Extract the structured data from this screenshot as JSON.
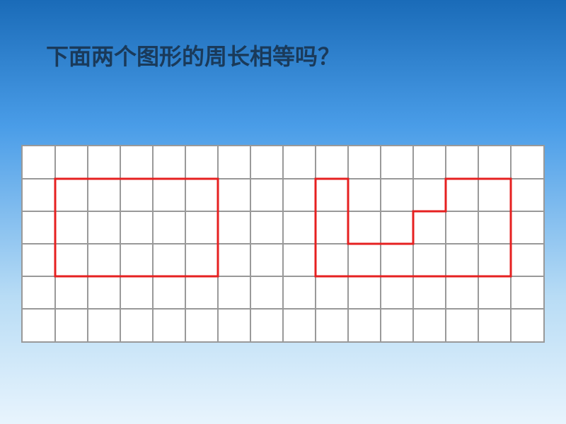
{
  "question": {
    "text": "下面两个图形的周长相等吗？",
    "fontsize": 32,
    "color": "#1a3a5a"
  },
  "background": {
    "gradient_colors": [
      "#1a6bb8",
      "#4a9de8",
      "#b8dcf5",
      "#e8f4fd"
    ]
  },
  "grid": {
    "cols": 16,
    "rows": 6,
    "cell_size": 46.25,
    "line_color": "#999999",
    "line_width": 2,
    "background": "#ffffff",
    "viewbox_width": 740,
    "viewbox_height": 277.5
  },
  "shapes": [
    {
      "type": "rectangle",
      "name": "shape-left",
      "stroke": "#e62020",
      "stroke_width": 3,
      "fill": "none",
      "points": [
        [
          1,
          1
        ],
        [
          6,
          1
        ],
        [
          6,
          4
        ],
        [
          1,
          4
        ]
      ]
    },
    {
      "type": "polygon",
      "name": "shape-right",
      "stroke": "#e62020",
      "stroke_width": 3,
      "fill": "none",
      "points": [
        [
          9,
          1
        ],
        [
          10,
          1
        ],
        [
          10,
          3
        ],
        [
          12,
          3
        ],
        [
          12,
          2
        ],
        [
          13,
          2
        ],
        [
          13,
          1
        ],
        [
          15,
          1
        ],
        [
          15,
          4
        ],
        [
          9,
          4
        ]
      ]
    }
  ]
}
